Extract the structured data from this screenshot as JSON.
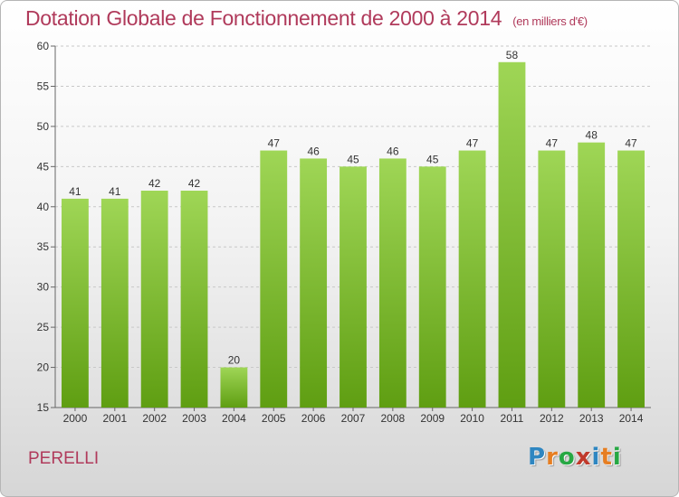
{
  "header": {
    "title": "Dotation Globale de Fonctionnement de 2000 à 2014",
    "subtitle": "(en milliers d'€)"
  },
  "commune": "PERELLI",
  "logo": {
    "letters": [
      {
        "char": "P",
        "color": "#2e86c1"
      },
      {
        "char": "r",
        "color": "#e67e22"
      },
      {
        "char": "o",
        "color": "#27a844"
      },
      {
        "char": "x",
        "color": "#c0392b"
      },
      {
        "char": "i",
        "color": "#2e86c1"
      },
      {
        "char": "t",
        "color": "#e67e22"
      },
      {
        "char": "i",
        "color": "#27a844"
      }
    ]
  },
  "chart_data": {
    "type": "bar",
    "categories": [
      "2000",
      "2001",
      "2002",
      "2003",
      "2004",
      "2005",
      "2006",
      "2007",
      "2008",
      "2009",
      "2010",
      "2011",
      "2012",
      "2013",
      "2014"
    ],
    "values": [
      41,
      41,
      42,
      42,
      20,
      47,
      46,
      45,
      46,
      45,
      47,
      58,
      47,
      48,
      47
    ],
    "ylim": [
      15,
      60
    ],
    "yticks": [
      15,
      20,
      25,
      30,
      35,
      40,
      45,
      50,
      55,
      60
    ],
    "grid": true,
    "bar_color_top": "#9fd656",
    "bar_color_bottom": "#5f9e12"
  }
}
